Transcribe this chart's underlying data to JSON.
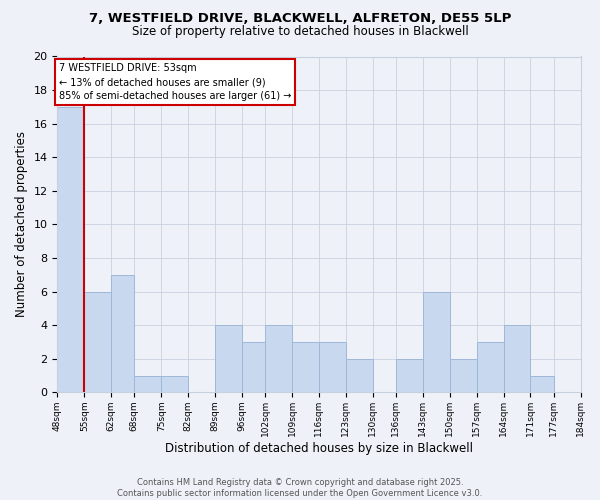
{
  "title1": "7, WESTFIELD DRIVE, BLACKWELL, ALFRETON, DE55 5LP",
  "title2": "Size of property relative to detached houses in Blackwell",
  "xlabel": "Distribution of detached houses by size in Blackwell",
  "ylabel": "Number of detached properties",
  "bin_edges": [
    48,
    55,
    62,
    68,
    75,
    82,
    89,
    96,
    102,
    109,
    116,
    123,
    130,
    136,
    143,
    150,
    157,
    164,
    171,
    177,
    184
  ],
  "counts": [
    17,
    6,
    7,
    1,
    1,
    0,
    4,
    3,
    4,
    3,
    3,
    2,
    0,
    2,
    6,
    2,
    3,
    4,
    1,
    0
  ],
  "bar_color": "#c8d8ee",
  "bar_edge_color": "#a0b8d8",
  "property_line_x": 55,
  "property_line_color": "#cc0000",
  "annotation_title": "7 WESTFIELD DRIVE: 53sqm",
  "annotation_line1": "← 13% of detached houses are smaller (9)",
  "annotation_line2": "85% of semi-detached houses are larger (61) →",
  "annotation_box_color": "#ffffff",
  "annotation_box_edge": "#cc0000",
  "ylim": [
    0,
    20
  ],
  "yticks": [
    0,
    2,
    4,
    6,
    8,
    10,
    12,
    14,
    16,
    18,
    20
  ],
  "background_color": "#eef2f8",
  "plot_bg_color": "#eef2f8",
  "grid_color": "#c8d0e0",
  "tick_labels": [
    "48sqm",
    "55sqm",
    "62sqm",
    "68sqm",
    "75sqm",
    "82sqm",
    "89sqm",
    "96sqm",
    "102sqm",
    "109sqm",
    "116sqm",
    "123sqm",
    "130sqm",
    "136sqm",
    "143sqm",
    "150sqm",
    "157sqm",
    "164sqm",
    "171sqm",
    "177sqm",
    "184sqm"
  ],
  "footer1": "Contains HM Land Registry data © Crown copyright and database right 2025.",
  "footer2": "Contains public sector information licensed under the Open Government Licence v3.0."
}
